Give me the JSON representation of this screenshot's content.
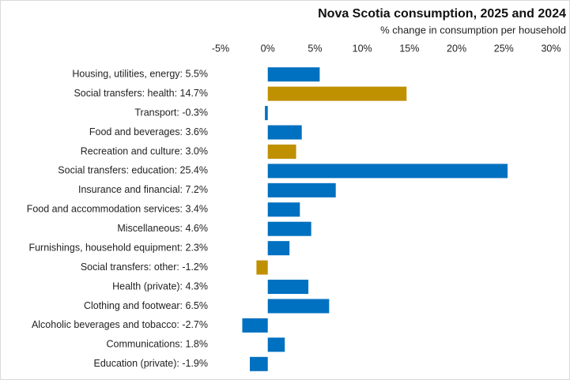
{
  "chart_data": {
    "type": "bar",
    "orientation": "horizontal",
    "title": "Nova Scotia consumption, 2025 and 2024",
    "subtitle": "% change in consumption per household",
    "categories": [
      "Housing, utilities, energy: 5.5%",
      "Social transfers: health: 14.7%",
      "Transport: -0.3%",
      "Food and beverages: 3.6%",
      "Recreation and culture: 3.0%",
      "Social transfers: education: 25.4%",
      "Insurance and financial: 7.2%",
      "Food and accommodation services: 3.4%",
      "Miscellaneous: 4.6%",
      "Furnishings, household equipment: 2.3%",
      "Social transfers: other: -1.2%",
      "Health (private): 4.3%",
      "Clothing and footwear: 6.5%",
      "Alcoholic beverages and tobacco: -2.7%",
      "Communications: 1.8%",
      "Education (private): -1.9%"
    ],
    "values": [
      5.5,
      14.7,
      -0.3,
      3.6,
      3.0,
      25.4,
      7.2,
      3.4,
      4.6,
      2.3,
      -1.2,
      4.3,
      6.5,
      -2.7,
      1.8,
      -1.9
    ],
    "colors": [
      "#0070c0",
      "#bf9000",
      "#0070c0",
      "#0070c0",
      "#bf9000",
      "#0070c0",
      "#0070c0",
      "#0070c0",
      "#0070c0",
      "#0070c0",
      "#bf9000",
      "#0070c0",
      "#0070c0",
      "#0070c0",
      "#0070c0",
      "#0070c0"
    ],
    "xlim": [
      -5,
      30
    ],
    "xticks": [
      {
        "value": -5,
        "label": "-5%"
      },
      {
        "value": 0,
        "label": "0%"
      },
      {
        "value": 5,
        "label": "5%"
      },
      {
        "value": 10,
        "label": "10%"
      },
      {
        "value": 15,
        "label": "15%"
      },
      {
        "value": 20,
        "label": "20%"
      },
      {
        "value": 25,
        "label": "25%"
      },
      {
        "value": 30,
        "label": "30%"
      }
    ],
    "grid": false
  }
}
